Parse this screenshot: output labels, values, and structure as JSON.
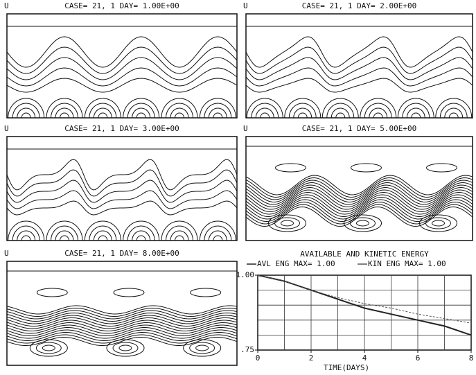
{
  "panels": [
    {
      "label": "U",
      "title": "CASE= 21, 1  DAY= 1.00E+00"
    },
    {
      "label": "U",
      "title": "CASE= 21, 1  DAY= 2.00E+00"
    },
    {
      "label": "U",
      "title": "CASE= 21, 1  DAY= 3.00E+00"
    },
    {
      "label": "U",
      "title": "CASE= 21, 1  DAY= 5.00E+00"
    },
    {
      "label": "U",
      "title": "CASE= 21, 1  DAY= 8.00E+00"
    }
  ],
  "chart_data": {
    "type": "line",
    "title": "AVAILABLE AND KINETIC ENERGY",
    "x_label": "TIME(DAYS)",
    "x": [
      0,
      1,
      2,
      3,
      4,
      5,
      6,
      7,
      8
    ],
    "series": [
      {
        "name": "AVL ENG MAX= 1.00",
        "color": "#222222",
        "values": [
          1.0,
          0.98,
          0.95,
          0.92,
          0.89,
          0.87,
          0.85,
          0.83,
          0.8
        ]
      },
      {
        "name": "KIN ENG MAX= 1.00",
        "color": "#555555",
        "values": [
          1.0,
          0.98,
          0.95,
          0.925,
          0.905,
          0.89,
          0.87,
          0.855,
          0.84
        ]
      }
    ],
    "xlim": [
      0,
      8
    ],
    "xticks": [
      0,
      2,
      4,
      6,
      8
    ],
    "ylim": [
      0.75,
      1.0
    ],
    "yticks": [
      {
        "value": 0.75,
        "label": ".75"
      },
      {
        "value": 1.0,
        "label": "1.00"
      }
    ],
    "grid": true
  }
}
